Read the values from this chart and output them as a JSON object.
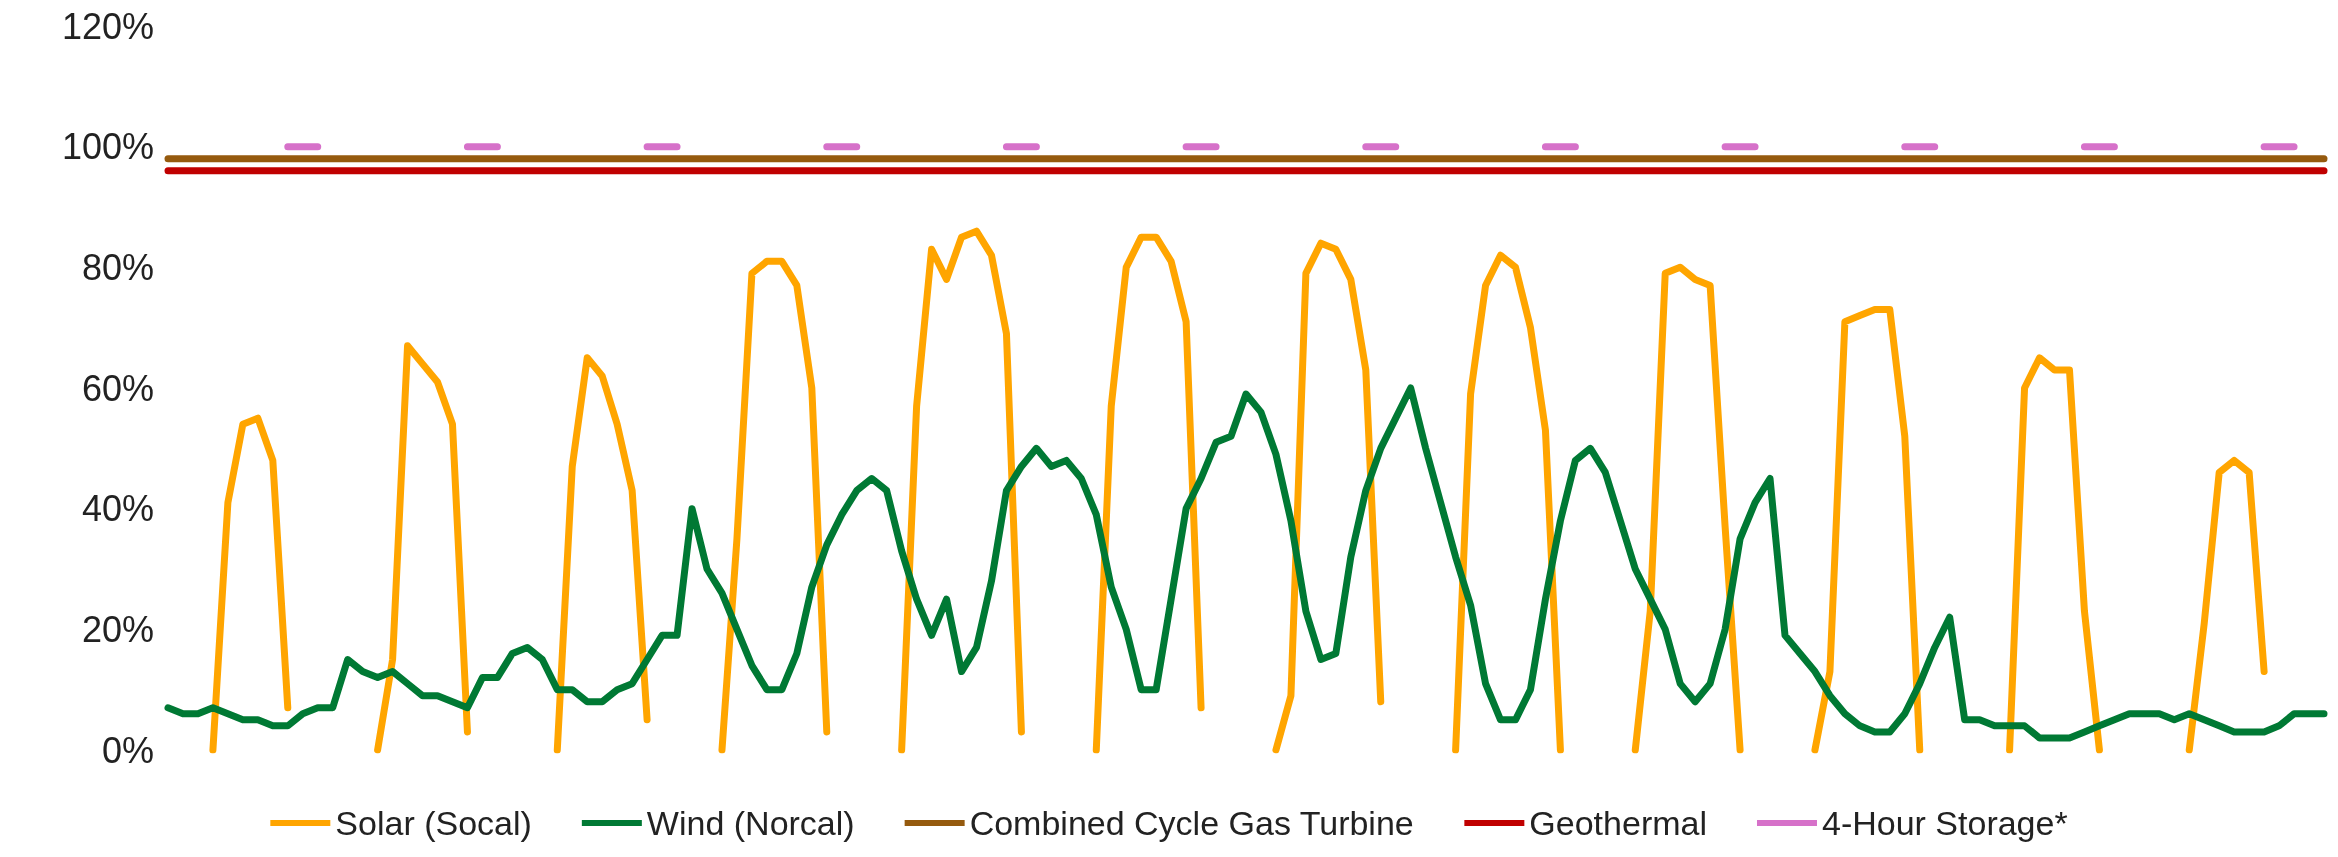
{
  "chart_data": {
    "type": "line",
    "categories": [
      null,
      null,
      null,
      null,
      null,
      null,
      null,
      null,
      null,
      null,
      null,
      null,
      null,
      null,
      null,
      null,
      null,
      null,
      null,
      null,
      null,
      null,
      null,
      null,
      null,
      null,
      null,
      null,
      null,
      null,
      null,
      null,
      null,
      null,
      null,
      null,
      null,
      null,
      null,
      null,
      null,
      null,
      null,
      null,
      null,
      null,
      null,
      null,
      null,
      null,
      null,
      null,
      null,
      null,
      null,
      null,
      null,
      null,
      null,
      null,
      null,
      null,
      null,
      null,
      null,
      null,
      null,
      null,
      null,
      null,
      null,
      null,
      null,
      null,
      null,
      null,
      null,
      null,
      null,
      null,
      null,
      null,
      null,
      null,
      null,
      null,
      null,
      null,
      null,
      null,
      null,
      null,
      null,
      null,
      null,
      null,
      null,
      null,
      null,
      null,
      null,
      null,
      null,
      null,
      null,
      null,
      null,
      null,
      null,
      null,
      null,
      null,
      null,
      null,
      null,
      null,
      null,
      null,
      null,
      null,
      null,
      null,
      null,
      null,
      null,
      null,
      null,
      null,
      null,
      null,
      null,
      null,
      null,
      null,
      null,
      null,
      null,
      null,
      null,
      null,
      null,
      null,
      null,
      null,
      null
    ],
    "series": [
      {
        "name": "Solar (Socal)",
        "color": "#ffa500",
        "values": [
          null,
          null,
          null,
          0,
          41,
          54,
          55,
          48,
          7,
          null,
          null,
          null,
          null,
          null,
          0,
          15,
          67,
          64,
          61,
          54,
          3,
          null,
          null,
          null,
          null,
          null,
          0,
          47,
          65,
          62,
          54,
          43,
          5,
          null,
          null,
          null,
          null,
          0,
          35,
          79,
          81,
          81,
          77,
          60,
          3,
          null,
          null,
          null,
          null,
          0,
          57,
          83,
          78,
          85,
          86,
          82,
          69,
          3,
          null,
          null,
          null,
          null,
          0,
          57,
          80,
          85,
          85,
          81,
          71,
          7,
          null,
          null,
          null,
          null,
          0,
          9,
          79,
          84,
          83,
          78,
          63,
          8,
          null,
          null,
          null,
          null,
          0,
          59,
          77,
          82,
          80,
          70,
          53,
          0,
          null,
          null,
          null,
          null,
          0,
          23,
          79,
          80,
          78,
          77,
          37,
          0,
          null,
          null,
          null,
          null,
          0,
          13,
          71,
          72,
          73,
          73,
          52,
          0,
          null,
          null,
          null,
          null,
          null,
          0,
          60,
          65,
          63,
          63,
          23,
          0,
          null,
          null,
          null,
          null,
          null,
          0,
          21,
          46,
          48,
          46,
          13,
          null,
          null,
          null,
          null
        ]
      },
      {
        "name": "Wind (Norcal)",
        "color": "#007934",
        "values": [
          7,
          6,
          6,
          7,
          6,
          5,
          5,
          4,
          4,
          6,
          7,
          7,
          15,
          13,
          12,
          13,
          11,
          9,
          9,
          8,
          7,
          12,
          12,
          16,
          17,
          15,
          10,
          10,
          8,
          8,
          10,
          11,
          15,
          19,
          19,
          40,
          30,
          26,
          20,
          14,
          10,
          10,
          16,
          27,
          34,
          39,
          43,
          45,
          43,
          33,
          25,
          19,
          25,
          13,
          17,
          28,
          43,
          47,
          50,
          47,
          48,
          45,
          39,
          27,
          20,
          10,
          10,
          25,
          40,
          45,
          51,
          52,
          59,
          56,
          49,
          38,
          23,
          15,
          16,
          32,
          43,
          50,
          55,
          60,
          50,
          41,
          32,
          24,
          11,
          5,
          5,
          10,
          25,
          38,
          48,
          50,
          46,
          38,
          30,
          25,
          20,
          11,
          8,
          11,
          20,
          35,
          41,
          45,
          19,
          16,
          13,
          9,
          6,
          4,
          3,
          3,
          6,
          11,
          17,
          22,
          5,
          5,
          4,
          4,
          4,
          2,
          2,
          2,
          3,
          4,
          5,
          6,
          6,
          6,
          5,
          6,
          5,
          4,
          3,
          3,
          3,
          4,
          6,
          6,
          6
        ]
      },
      {
        "name": "Combined Cycle Gas Turbine",
        "color": "#955a0e",
        "values": [
          98,
          98,
          98,
          98,
          98,
          98,
          98,
          98,
          98,
          98,
          98,
          98,
          98,
          98,
          98,
          98,
          98,
          98,
          98,
          98,
          98,
          98,
          98,
          98,
          98,
          98,
          98,
          98,
          98,
          98,
          98,
          98,
          98,
          98,
          98,
          98,
          98,
          98,
          98,
          98,
          98,
          98,
          98,
          98,
          98,
          98,
          98,
          98,
          98,
          98,
          98,
          98,
          98,
          98,
          98,
          98,
          98,
          98,
          98,
          98,
          98,
          98,
          98,
          98,
          98,
          98,
          98,
          98,
          98,
          98,
          98,
          98,
          98,
          98,
          98,
          98,
          98,
          98,
          98,
          98,
          98,
          98,
          98,
          98,
          98,
          98,
          98,
          98,
          98,
          98,
          98,
          98,
          98,
          98,
          98,
          98,
          98,
          98,
          98,
          98,
          98,
          98,
          98,
          98,
          98,
          98,
          98,
          98,
          98,
          98,
          98,
          98,
          98,
          98,
          98,
          98,
          98,
          98,
          98,
          98,
          98,
          98,
          98,
          98,
          98,
          98,
          98,
          98,
          98,
          98,
          98,
          98,
          98,
          98,
          98,
          98,
          98,
          98,
          98,
          98,
          98,
          98,
          98,
          98,
          98
        ]
      },
      {
        "name": "Geothermal",
        "color": "#c00000",
        "values": [
          96,
          96,
          96,
          96,
          96,
          96,
          96,
          96,
          96,
          96,
          96,
          96,
          96,
          96,
          96,
          96,
          96,
          96,
          96,
          96,
          96,
          96,
          96,
          96,
          96,
          96,
          96,
          96,
          96,
          96,
          96,
          96,
          96,
          96,
          96,
          96,
          96,
          96,
          96,
          96,
          96,
          96,
          96,
          96,
          96,
          96,
          96,
          96,
          96,
          96,
          96,
          96,
          96,
          96,
          96,
          96,
          96,
          96,
          96,
          96,
          96,
          96,
          96,
          96,
          96,
          96,
          96,
          96,
          96,
          96,
          96,
          96,
          96,
          96,
          96,
          96,
          96,
          96,
          96,
          96,
          96,
          96,
          96,
          96,
          96,
          96,
          96,
          96,
          96,
          96,
          96,
          96,
          96,
          96,
          96,
          96,
          96,
          96,
          96,
          96,
          96,
          96,
          96,
          96,
          96,
          96,
          96,
          96,
          96,
          96,
          96,
          96,
          96,
          96,
          96,
          96,
          96,
          96,
          96,
          96,
          96,
          96,
          96,
          96,
          96,
          96,
          96,
          96,
          96,
          96,
          96,
          96,
          96,
          96,
          96,
          96,
          96,
          96,
          96,
          96,
          96,
          96,
          96,
          96,
          96
        ]
      },
      {
        "name": "4-Hour Storage*",
        "color": "#d671c9",
        "values": [
          null,
          null,
          null,
          null,
          null,
          null,
          null,
          null,
          100,
          100,
          100,
          null,
          null,
          null,
          null,
          null,
          null,
          null,
          null,
          null,
          100,
          100,
          100,
          null,
          null,
          null,
          null,
          null,
          null,
          null,
          null,
          null,
          100,
          100,
          100,
          null,
          null,
          null,
          null,
          null,
          null,
          null,
          null,
          null,
          100,
          100,
          100,
          null,
          null,
          null,
          null,
          null,
          null,
          null,
          null,
          null,
          100,
          100,
          100,
          null,
          null,
          null,
          null,
          null,
          null,
          null,
          null,
          null,
          100,
          100,
          100,
          null,
          null,
          null,
          null,
          null,
          null,
          null,
          null,
          null,
          100,
          100,
          100,
          null,
          null,
          null,
          null,
          null,
          null,
          null,
          null,
          null,
          100,
          100,
          100,
          null,
          null,
          null,
          null,
          null,
          null,
          null,
          null,
          null,
          100,
          100,
          100,
          null,
          null,
          null,
          null,
          null,
          null,
          null,
          null,
          null,
          100,
          100,
          100,
          null,
          null,
          null,
          null,
          null,
          null,
          null,
          null,
          null,
          100,
          100,
          100,
          null,
          null,
          null,
          null,
          null,
          null,
          null,
          null,
          null,
          100,
          100,
          100,
          null,
          null
        ]
      }
    ],
    "ylim": [
      0,
      120
    ],
    "yticks": [
      {
        "value": 0,
        "label": "0%"
      },
      {
        "value": 20,
        "label": "20%"
      },
      {
        "value": 40,
        "label": "40%"
      },
      {
        "value": 60,
        "label": "60%"
      },
      {
        "value": 80,
        "label": "80%"
      },
      {
        "value": 100,
        "label": "100%"
      },
      {
        "value": 120,
        "label": "120%"
      }
    ],
    "legend": "bottom",
    "marker": "none"
  }
}
